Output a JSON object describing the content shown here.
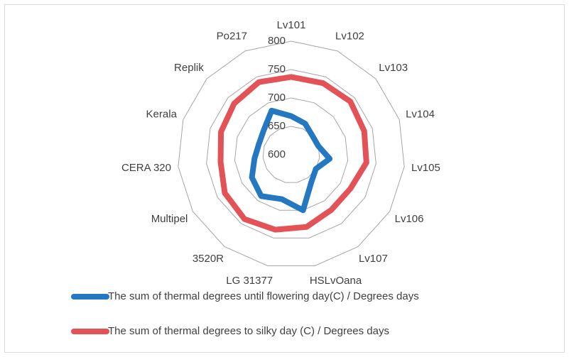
{
  "chart_data": {
    "type": "radar",
    "categories": [
      "Lv101",
      "Lv102",
      "Lv103",
      "Lv104",
      "Lv105",
      "Lv106",
      "Lv107",
      "HSLvOana",
      "LG 31377",
      "3520R",
      "Multipel",
      "CERA 320",
      "Kerala",
      "Replik",
      "Po217"
    ],
    "series": [
      {
        "name": "The sum of thermal degrees until flowering day(C) / Degrees days",
        "color": "#2478c2",
        "values": [
          668,
          660,
          650,
          650,
          668,
          650,
          660,
          700,
          680,
          690,
          680,
          665,
          660,
          665,
          685
        ]
      },
      {
        "name": "The sum of thermal degrees to silky day (C) / Degrees days",
        "color": "#e35256",
        "values": [
          737,
          738,
          740,
          735,
          733,
          720,
          720,
          730,
          735,
          740,
          735,
          725,
          730,
          735,
          740
        ]
      }
    ],
    "ylim": [
      600,
      800
    ],
    "yticks": [
      600,
      650,
      700,
      750,
      800
    ],
    "grid": true
  }
}
